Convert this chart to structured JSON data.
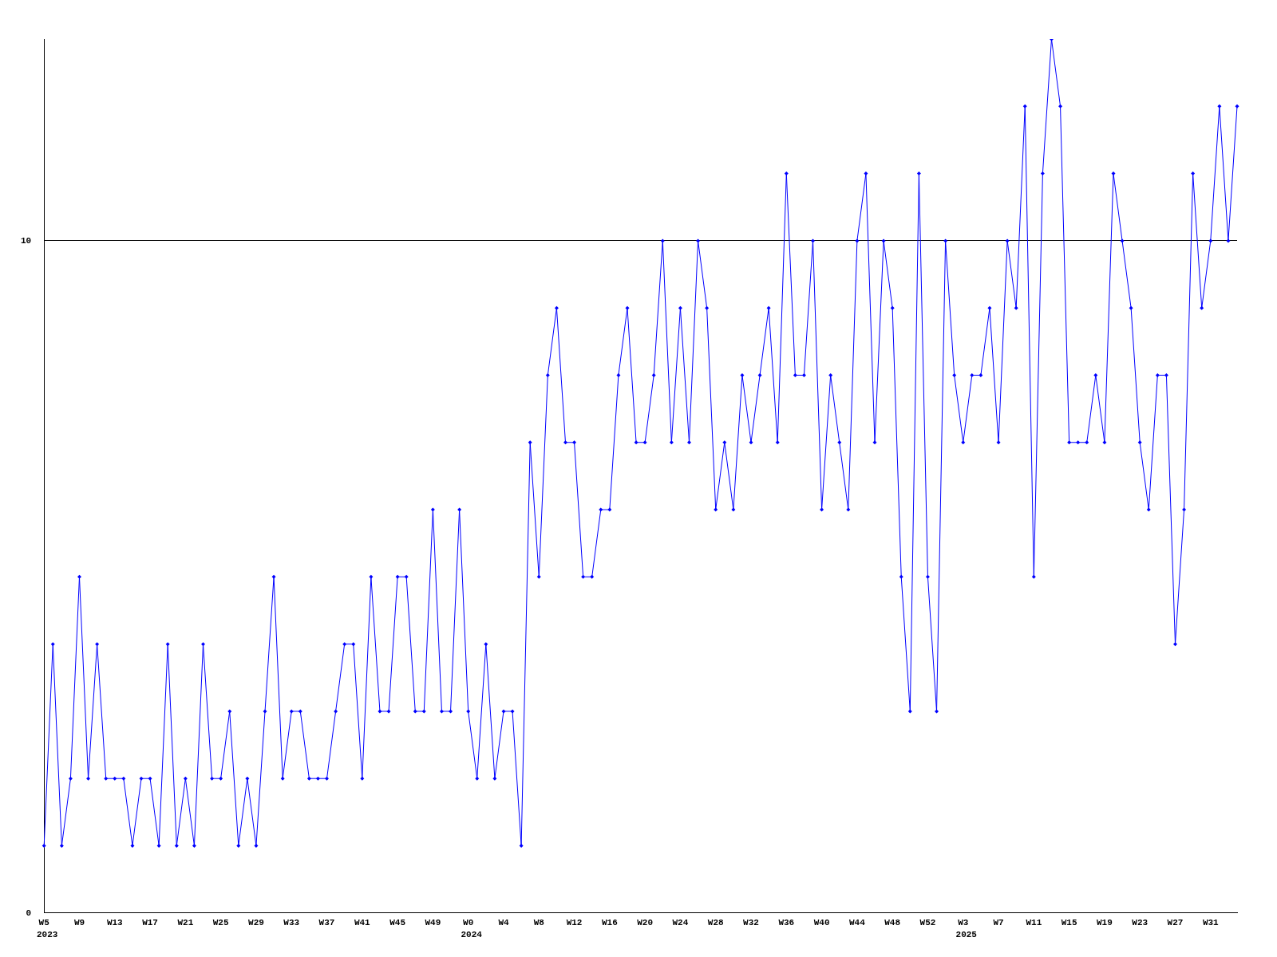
{
  "chart_data": {
    "type": "line",
    "categories": [
      "W5",
      null,
      null,
      null,
      "W9",
      null,
      null,
      null,
      "W13",
      null,
      null,
      null,
      "W17",
      null,
      null,
      null,
      "W21",
      null,
      null,
      null,
      "W25",
      null,
      null,
      null,
      "W29",
      null,
      null,
      null,
      "W33",
      null,
      null,
      null,
      "W37",
      null,
      null,
      null,
      "W41",
      null,
      null,
      null,
      "W45",
      null,
      null,
      null,
      "W49",
      null,
      null,
      null,
      "W0",
      null,
      null,
      null,
      "W4",
      null,
      null,
      null,
      "W8",
      null,
      null,
      null,
      "W12",
      null,
      null,
      null,
      "W16",
      null,
      null,
      null,
      "W20",
      null,
      null,
      null,
      "W24",
      null,
      null,
      null,
      "W28",
      null,
      null,
      null,
      "W32",
      null,
      null,
      null,
      "W36",
      null,
      null,
      null,
      "W40",
      null,
      null,
      null,
      "W44",
      null,
      null,
      null,
      "W48",
      null,
      null,
      null,
      "W52",
      null,
      null,
      null,
      "W3",
      null,
      null,
      null,
      "W7",
      null,
      null,
      null,
      "W11",
      null,
      null,
      null,
      "W15",
      null,
      null,
      null,
      "W19",
      null,
      null,
      null,
      "W23",
      null,
      null,
      null,
      "W27",
      null,
      null,
      null,
      "W31",
      null,
      null,
      null
    ],
    "series": [
      {
        "color": "#0000ff",
        "values": [
          1,
          4,
          1,
          2,
          5,
          2,
          4,
          2,
          2,
          2,
          1,
          2,
          2,
          1,
          4,
          1,
          2,
          1,
          4,
          2,
          2,
          3,
          1,
          2,
          1,
          3,
          5,
          2,
          3,
          3,
          2,
          2,
          2,
          3,
          4,
          4,
          2,
          5,
          3,
          3,
          5,
          5,
          3,
          3,
          6,
          3,
          3,
          6,
          3,
          2,
          4,
          2,
          3,
          3,
          1,
          7,
          5,
          8,
          9,
          7,
          7,
          5,
          5,
          6,
          6,
          8,
          9,
          7,
          7,
          8,
          10,
          7,
          9,
          7,
          10,
          9,
          6,
          7,
          6,
          8,
          7,
          8,
          9,
          7,
          11,
          8,
          8,
          10,
          6,
          8,
          7,
          6,
          10,
          11,
          7,
          10,
          9,
          5,
          3,
          11,
          5,
          3,
          10,
          8,
          7,
          8,
          8,
          9,
          7,
          10,
          9,
          12,
          5,
          11,
          13,
          12,
          7,
          7,
          7,
          8,
          7,
          11,
          10,
          9,
          7,
          6,
          8,
          8,
          4,
          6,
          11,
          9,
          10,
          12,
          10,
          12
        ]
      }
    ],
    "ylim": [
      0,
      13
    ],
    "yticks": [
      0,
      10
    ],
    "grid": "y",
    "legend": false,
    "marker": "diamond",
    "line_style": "solid",
    "annotations": [
      "2023",
      "2024",
      "2025"
    ]
  }
}
